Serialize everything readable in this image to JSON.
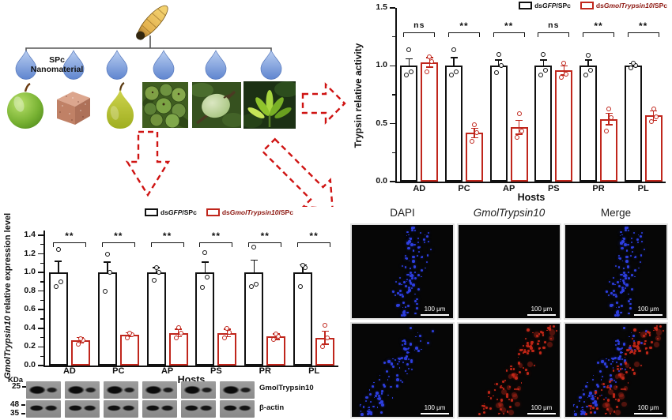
{
  "diagram": {
    "larva_icon": "codling-moth-larva",
    "spc_line1": "SPc",
    "spc_line2": "Nanomaterial",
    "droplet_count": 6,
    "host_icons": [
      "green-apple",
      "artificial-diet-cube",
      "pear",
      "crabapple-cluster",
      "green-stone-fruit",
      "plant-shoot"
    ]
  },
  "chart_data": [
    {
      "id": "trypsin_activity",
      "type": "bar",
      "xlabel": "Hosts",
      "ylabel": "Trypsin relative activity",
      "ylim": [
        0,
        1.5
      ],
      "yticks": [
        0.0,
        0.5,
        1.0,
        1.5
      ],
      "categories": [
        "AD",
        "PC",
        "AP",
        "PS",
        "PR",
        "PL"
      ],
      "series": [
        {
          "name": "dsGFP/SPc",
          "name_parts": [
            {
              "text": "ds",
              "italic": false
            },
            {
              "text": "GFP",
              "italic": true
            },
            {
              "text": "/SPc",
              "italic": false
            }
          ],
          "color": "#111111",
          "label_color": "#111111",
          "values": [
            1.0,
            1.0,
            1.0,
            1.0,
            1.0,
            1.0
          ],
          "errors": [
            0.06,
            0.07,
            0.05,
            0.05,
            0.05,
            0.02
          ],
          "points": [
            [
              0.92,
              0.95,
              1.14
            ],
            [
              0.92,
              0.95,
              1.14
            ],
            [
              0.94,
              1.0,
              1.1
            ],
            [
              0.92,
              0.96,
              1.1
            ],
            [
              0.92,
              0.96,
              1.09
            ],
            [
              0.98,
              1.0,
              1.02
            ]
          ]
        },
        {
          "name": "dsGmolTrypsin10/SPc",
          "name_parts": [
            {
              "text": "ds",
              "italic": false
            },
            {
              "text": "GmolTrypsin10",
              "italic": true
            },
            {
              "text": "/SPc",
              "italic": false
            }
          ],
          "color": "#c0261c",
          "label_color": "#8d1710",
          "values": [
            1.03,
            0.42,
            0.47,
            0.96,
            0.54,
            0.57
          ],
          "errors": [
            0.04,
            0.04,
            0.06,
            0.04,
            0.05,
            0.04
          ],
          "points": [
            [
              0.95,
              1.04,
              1.08
            ],
            [
              0.35,
              0.42,
              0.49
            ],
            [
              0.38,
              0.44,
              0.59
            ],
            [
              0.9,
              0.93,
              1.02
            ],
            [
              0.44,
              0.55,
              0.63
            ],
            [
              0.52,
              0.56,
              0.63
            ]
          ]
        }
      ],
      "significance": [
        "ns",
        "**",
        "**",
        "ns",
        "**",
        "**"
      ],
      "legend_position": "top-right"
    },
    {
      "id": "gmoltrypsin10_expression",
      "type": "bar",
      "xlabel": "Hosts",
      "ylabel": "GmolTrypsin10 relative expression level",
      "ylabel_parts": [
        {
          "text": "GmolTrypsin10",
          "italic": true
        },
        {
          "text": " relative expression level",
          "italic": false
        }
      ],
      "ylim": [
        0,
        1.45
      ],
      "yticks": [
        0.0,
        0.2,
        0.4,
        0.6,
        0.8,
        1.0,
        1.2,
        1.4
      ],
      "categories": [
        "AD",
        "PC",
        "AP",
        "PS",
        "PR",
        "PL"
      ],
      "series": [
        {
          "name": "dsGFP/SPc",
          "name_parts": [
            {
              "text": "ds",
              "italic": false
            },
            {
              "text": "GFP",
              "italic": true
            },
            {
              "text": "/SPc",
              "italic": false
            }
          ],
          "color": "#111111",
          "label_color": "#111111",
          "values": [
            1.0,
            1.0,
            1.0,
            1.0,
            1.0,
            1.0
          ],
          "errors": [
            0.12,
            0.11,
            0.05,
            0.11,
            0.13,
            0.08
          ],
          "points": [
            [
              0.85,
              0.9,
              1.25
            ],
            [
              0.8,
              1.0,
              1.2
            ],
            [
              0.92,
              1.0,
              1.05
            ],
            [
              0.84,
              0.95,
              1.21
            ],
            [
              0.85,
              0.87,
              1.27
            ],
            [
              0.85,
              1.05,
              1.08
            ]
          ]
        },
        {
          "name": "dsGmolTrypsin10/SPc",
          "name_parts": [
            {
              "text": "ds",
              "italic": false
            },
            {
              "text": "GmolTrypsin10",
              "italic": true
            },
            {
              "text": "/SPc",
              "italic": false
            }
          ],
          "color": "#c0261c",
          "label_color": "#8d1710",
          "values": [
            0.27,
            0.33,
            0.35,
            0.35,
            0.31,
            0.3
          ],
          "errors": [
            0.03,
            0.02,
            0.04,
            0.04,
            0.03,
            0.07
          ],
          "points": [
            [
              0.23,
              0.27,
              0.29
            ],
            [
              0.3,
              0.33,
              0.35
            ],
            [
              0.3,
              0.35,
              0.41
            ],
            [
              0.3,
              0.36,
              0.4
            ],
            [
              0.28,
              0.31,
              0.34
            ],
            [
              0.2,
              0.3,
              0.43
            ]
          ]
        }
      ],
      "significance": [
        "**",
        "**",
        "**",
        "**",
        "**",
        "**"
      ],
      "legend_position": "top-center"
    }
  ],
  "western_blot": {
    "unit_label": "KDa",
    "ladder": [
      "25",
      "48",
      "35"
    ],
    "row_labels": [
      "GmolTrypsin10",
      "β-actin"
    ],
    "lane_groups": 6
  },
  "microscopy": {
    "columns": [
      {
        "label": "DAPI",
        "italic": false
      },
      {
        "label": "GmolTrypsin10",
        "italic": true
      },
      {
        "label": "Merge",
        "italic": false
      }
    ],
    "rows": [
      {
        "band": "vertical",
        "channels": [
          "blue",
          "none",
          "blue"
        ]
      },
      {
        "band": "diagonal",
        "channels": [
          "blue",
          "red",
          "blue+red"
        ]
      }
    ],
    "scale_bar_label": "100 μm",
    "fluor_colors": {
      "blue": "#2e3fe0",
      "red": "#c02718"
    }
  }
}
